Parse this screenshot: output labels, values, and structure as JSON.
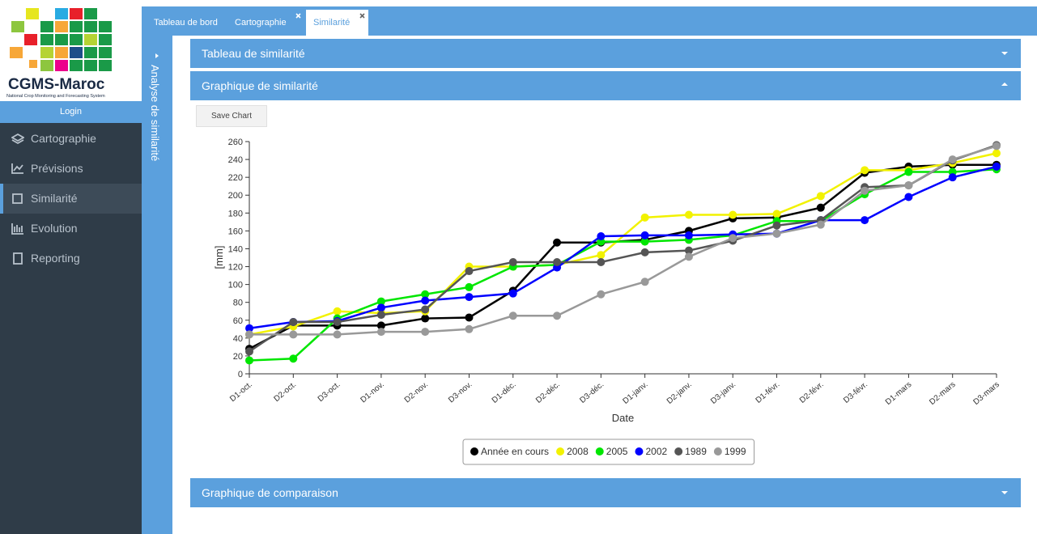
{
  "sidebar": {
    "logo_title": "CGMS-Maroc",
    "logo_subtitle": "National Crop Monitoring and Forecasting System",
    "login": "Login",
    "menu": [
      "Cartographie",
      "Prévisions",
      "Similarité",
      "Evolution",
      "Reporting"
    ]
  },
  "tabs": [
    "Tableau de bord",
    "Cartographie",
    "Similarité"
  ],
  "side_panel": "Analyse de similarité",
  "panels": [
    "Tableau de similarité",
    "Graphique de similarité",
    "Graphique de comparaison"
  ],
  "save_button": "Save Chart",
  "chart_data": {
    "type": "line",
    "xlabel": "Date",
    "ylabel": "[mm]",
    "categories": [
      "D1-oct.",
      "D2-oct.",
      "D3-oct.",
      "D1-nov.",
      "D2-nov.",
      "D3-nov.",
      "D1-déc.",
      "D2-déc.",
      "D3-déc.",
      "D1-janv.",
      "D2-janv.",
      "D3-janv.",
      "D1-févr.",
      "D2-févr.",
      "D3-févr.",
      "D1-mars",
      "D2-mars",
      "D3-mars"
    ],
    "ylim": [
      0,
      260
    ],
    "yticks": [
      0,
      20,
      40,
      60,
      80,
      100,
      120,
      140,
      160,
      180,
      200,
      220,
      240,
      260
    ],
    "series": [
      {
        "name": "Année en cours",
        "color": "#000000",
        "values": [
          28,
          54,
          54,
          54,
          62,
          63,
          93,
          147,
          147,
          150,
          160,
          174,
          175,
          186,
          225,
          232,
          234,
          234
        ]
      },
      {
        "name": "2008",
        "color": "#f2f200",
        "values": [
          44,
          53,
          70,
          68,
          70,
          120,
          120,
          122,
          133,
          175,
          178,
          178,
          179,
          199,
          228,
          228,
          236,
          247
        ]
      },
      {
        "name": "2005",
        "color": "#00e600",
        "values": [
          15,
          17,
          62,
          81,
          89,
          97,
          120,
          122,
          148,
          148,
          150,
          155,
          171,
          171,
          201,
          226,
          226,
          229
        ]
      },
      {
        "name": "2002",
        "color": "#0000ff",
        "values": [
          51,
          58,
          59,
          74,
          82,
          86,
          90,
          119,
          154,
          155,
          155,
          156,
          157,
          172,
          172,
          198,
          220,
          232
        ]
      },
      {
        "name": "1989",
        "color": "#555555",
        "values": [
          25,
          58,
          58,
          66,
          72,
          115,
          125,
          125,
          125,
          136,
          138,
          149,
          166,
          172,
          209,
          211,
          239,
          256
        ]
      },
      {
        "name": "1999",
        "color": "#999999",
        "values": [
          44,
          44,
          44,
          47,
          47,
          50,
          65,
          65,
          89,
          103,
          131,
          152,
          157,
          167,
          205,
          211,
          240,
          255
        ]
      }
    ]
  }
}
